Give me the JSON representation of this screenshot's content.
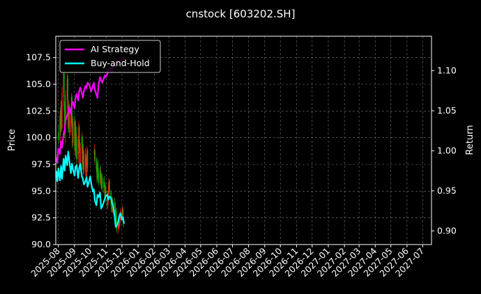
{
  "chart_data": {
    "type": "line",
    "title": "cnstock [603202.SH]",
    "ylabel": "Price",
    "y2label": "Return",
    "ylim": [
      90.0,
      109.5
    ],
    "y2lim": [
      0.883,
      1.143
    ],
    "xlim": [
      "2025-07-27",
      "2027-07-18"
    ],
    "yticks": [
      "90.0",
      "92.5",
      "95.0",
      "97.5",
      "100.0",
      "102.5",
      "105.0",
      "107.5"
    ],
    "y2ticks": [
      "0.90",
      "0.95",
      "1.00",
      "1.05",
      "1.10"
    ],
    "xticks": [
      "2025-08",
      "2025-09",
      "2025-10",
      "2025-11",
      "2025-12",
      "2026-01",
      "2026-02",
      "2026-03",
      "2026-04",
      "2026-05",
      "2026-06",
      "2026-07",
      "2026-08",
      "2026-09",
      "2026-10",
      "2026-11",
      "2026-12",
      "2027-01",
      "2027-02",
      "2027-03",
      "2027-04",
      "2027-05",
      "2027-06",
      "2027-07"
    ],
    "grid": true,
    "legend_position": "top-left",
    "candles": [
      {
        "date": "2025-08-01",
        "open": 100.5,
        "high": 101.2,
        "low": 99.4,
        "close": 99.8
      },
      {
        "date": "2025-08-04",
        "open": 99.8,
        "high": 102.5,
        "low": 99.5,
        "close": 102.0
      },
      {
        "date": "2025-08-05",
        "open": 102.0,
        "high": 102.8,
        "low": 100.2,
        "close": 100.8
      },
      {
        "date": "2025-08-06",
        "open": 100.8,
        "high": 103.5,
        "low": 100.5,
        "close": 103.0
      },
      {
        "date": "2025-08-07",
        "open": 103.0,
        "high": 103.4,
        "low": 100.6,
        "close": 101.0
      },
      {
        "date": "2025-08-08",
        "open": 101.0,
        "high": 104.8,
        "low": 100.8,
        "close": 104.2
      },
      {
        "date": "2025-08-11",
        "open": 104.2,
        "high": 106.5,
        "low": 103.8,
        "close": 106.0
      },
      {
        "date": "2025-08-12",
        "open": 106.0,
        "high": 106.4,
        "low": 102.5,
        "close": 103.0
      },
      {
        "date": "2025-08-13",
        "open": 103.0,
        "high": 103.4,
        "low": 100.0,
        "close": 100.4
      },
      {
        "date": "2025-08-14",
        "open": 100.4,
        "high": 102.0,
        "low": 99.5,
        "close": 101.5
      },
      {
        "date": "2025-08-15",
        "open": 101.5,
        "high": 104.5,
        "low": 101.2,
        "close": 104.0
      },
      {
        "date": "2025-08-18",
        "open": 104.0,
        "high": 106.0,
        "low": 103.5,
        "close": 105.5
      },
      {
        "date": "2025-08-19",
        "open": 105.5,
        "high": 105.8,
        "low": 102.0,
        "close": 102.5
      },
      {
        "date": "2025-08-20",
        "open": 102.5,
        "high": 103.0,
        "low": 100.5,
        "close": 101.0
      },
      {
        "date": "2025-08-21",
        "open": 101.0,
        "high": 103.5,
        "low": 100.8,
        "close": 103.0
      },
      {
        "date": "2025-08-22",
        "open": 103.0,
        "high": 103.2,
        "low": 100.0,
        "close": 100.5
      },
      {
        "date": "2025-08-25",
        "open": 100.5,
        "high": 102.8,
        "low": 100.2,
        "close": 102.3
      },
      {
        "date": "2025-08-26",
        "open": 102.3,
        "high": 104.2,
        "low": 101.8,
        "close": 103.8
      },
      {
        "date": "2025-08-27",
        "open": 103.8,
        "high": 104.0,
        "low": 101.0,
        "close": 101.4
      },
      {
        "date": "2025-08-28",
        "open": 101.4,
        "high": 101.8,
        "low": 99.0,
        "close": 99.5
      },
      {
        "date": "2025-08-29",
        "open": 99.5,
        "high": 102.0,
        "low": 99.2,
        "close": 101.5
      },
      {
        "date": "2025-09-01",
        "open": 101.5,
        "high": 102.0,
        "low": 98.8,
        "close": 99.2
      },
      {
        "date": "2025-09-02",
        "open": 99.2,
        "high": 101.8,
        "low": 98.5,
        "close": 101.2
      },
      {
        "date": "2025-09-03",
        "open": 101.2,
        "high": 101.6,
        "low": 98.2,
        "close": 98.8
      },
      {
        "date": "2025-09-04",
        "open": 98.8,
        "high": 100.5,
        "low": 98.0,
        "close": 100.0
      },
      {
        "date": "2025-09-05",
        "open": 100.0,
        "high": 101.0,
        "low": 97.5,
        "close": 98.0
      },
      {
        "date": "2025-09-08",
        "open": 98.0,
        "high": 100.2,
        "low": 97.6,
        "close": 99.8
      },
      {
        "date": "2025-09-09",
        "open": 99.8,
        "high": 101.5,
        "low": 99.2,
        "close": 101.0
      },
      {
        "date": "2025-09-10",
        "open": 101.0,
        "high": 101.2,
        "low": 98.5,
        "close": 99.0
      },
      {
        "date": "2025-09-11",
        "open": 99.0,
        "high": 99.8,
        "low": 97.2,
        "close": 97.6
      },
      {
        "date": "2025-09-12",
        "open": 97.6,
        "high": 99.5,
        "low": 97.2,
        "close": 99.0
      },
      {
        "date": "2025-09-15",
        "open": 99.0,
        "high": 100.5,
        "low": 98.5,
        "close": 100.0
      },
      {
        "date": "2025-09-16",
        "open": 100.0,
        "high": 100.2,
        "low": 97.0,
        "close": 97.5
      },
      {
        "date": "2025-09-17",
        "open": 97.5,
        "high": 99.2,
        "low": 97.0,
        "close": 98.8
      },
      {
        "date": "2025-09-18",
        "open": 98.8,
        "high": 99.4,
        "low": 96.5,
        "close": 97.0
      },
      {
        "date": "2025-09-19",
        "open": 97.0,
        "high": 98.8,
        "low": 96.6,
        "close": 98.4
      },
      {
        "date": "2025-09-22",
        "open": 98.4,
        "high": 99.0,
        "low": 96.8,
        "close": 97.2
      },
      {
        "date": "2025-09-23",
        "open": 97.2,
        "high": 98.5,
        "low": 96.0,
        "close": 96.4
      },
      {
        "date": "2025-09-24",
        "open": 96.4,
        "high": 98.2,
        "low": 96.2,
        "close": 97.8
      },
      {
        "date": "2025-09-25",
        "open": 97.8,
        "high": 99.2,
        "low": 97.4,
        "close": 98.8
      },
      {
        "date": "2025-09-26",
        "open": 98.8,
        "high": 99.0,
        "low": 96.8,
        "close": 97.2
      },
      {
        "date": "2025-10-09",
        "open": 98.4,
        "high": 99.4,
        "low": 97.8,
        "close": 98.8
      },
      {
        "date": "2025-10-10",
        "open": 98.8,
        "high": 99.0,
        "low": 97.6,
        "close": 98.0
      },
      {
        "date": "2025-10-13",
        "open": 98.0,
        "high": 98.2,
        "low": 96.8,
        "close": 97.1
      },
      {
        "date": "2025-10-14",
        "open": 97.1,
        "high": 97.6,
        "low": 95.8,
        "close": 96.2
      },
      {
        "date": "2025-10-15",
        "open": 96.2,
        "high": 97.8,
        "low": 96.0,
        "close": 97.4
      },
      {
        "date": "2025-10-16",
        "open": 97.4,
        "high": 98.0,
        "low": 96.3,
        "close": 96.6
      },
      {
        "date": "2025-10-17",
        "open": 96.6,
        "high": 97.0,
        "low": 95.5,
        "close": 95.8
      },
      {
        "date": "2025-10-20",
        "open": 95.8,
        "high": 97.2,
        "low": 95.6,
        "close": 96.9
      },
      {
        "date": "2025-10-21",
        "open": 96.9,
        "high": 97.4,
        "low": 96.1,
        "close": 96.3
      },
      {
        "date": "2025-10-22",
        "open": 96.3,
        "high": 96.8,
        "low": 95.2,
        "close": 95.5
      },
      {
        "date": "2025-10-23",
        "open": 95.5,
        "high": 96.6,
        "low": 95.2,
        "close": 96.3
      },
      {
        "date": "2025-10-24",
        "open": 96.3,
        "high": 96.6,
        "low": 95.0,
        "close": 95.3
      },
      {
        "date": "2025-10-27",
        "open": 95.3,
        "high": 96.2,
        "low": 94.8,
        "close": 95.9
      },
      {
        "date": "2025-10-28",
        "open": 95.9,
        "high": 96.4,
        "low": 95.3,
        "close": 95.6
      },
      {
        "date": "2025-10-29",
        "open": 95.6,
        "high": 95.8,
        "low": 94.2,
        "close": 94.5
      },
      {
        "date": "2025-10-30",
        "open": 94.5,
        "high": 95.4,
        "low": 94.1,
        "close": 95.1
      },
      {
        "date": "2025-10-31",
        "open": 95.1,
        "high": 95.6,
        "low": 94.4,
        "close": 94.8
      },
      {
        "date": "2025-11-03",
        "open": 94.8,
        "high": 95.0,
        "low": 93.4,
        "close": 93.7
      },
      {
        "date": "2025-11-04",
        "open": 93.7,
        "high": 94.6,
        "low": 93.3,
        "close": 94.3
      },
      {
        "date": "2025-11-05",
        "open": 94.3,
        "high": 95.6,
        "low": 94.0,
        "close": 95.2
      },
      {
        "date": "2025-11-06",
        "open": 95.2,
        "high": 96.2,
        "low": 94.9,
        "close": 95.9
      },
      {
        "date": "2025-11-07",
        "open": 95.9,
        "high": 96.1,
        "low": 94.6,
        "close": 94.9
      },
      {
        "date": "2025-11-10",
        "open": 94.9,
        "high": 95.1,
        "low": 93.6,
        "close": 93.9
      },
      {
        "date": "2025-11-11",
        "open": 93.9,
        "high": 94.3,
        "low": 93.0,
        "close": 93.3
      },
      {
        "date": "2025-11-12",
        "open": 93.3,
        "high": 94.5,
        "low": 93.0,
        "close": 94.2
      },
      {
        "date": "2025-11-13",
        "open": 94.2,
        "high": 94.4,
        "low": 93.1,
        "close": 93.5
      },
      {
        "date": "2025-11-14",
        "open": 93.5,
        "high": 94.2,
        "low": 92.9,
        "close": 93.9
      },
      {
        "date": "2025-11-17",
        "open": 93.9,
        "high": 94.4,
        "low": 93.4,
        "close": 93.8
      },
      {
        "date": "2025-11-18",
        "open": 93.8,
        "high": 94.0,
        "low": 92.6,
        "close": 92.9
      },
      {
        "date": "2025-11-19",
        "open": 92.9,
        "high": 93.5,
        "low": 92.3,
        "close": 93.2
      },
      {
        "date": "2025-11-20",
        "open": 93.2,
        "high": 93.4,
        "low": 92.0,
        "close": 92.3
      },
      {
        "date": "2025-11-21",
        "open": 92.3,
        "high": 92.6,
        "low": 91.1,
        "close": 91.4
      },
      {
        "date": "2025-11-24",
        "open": 91.4,
        "high": 92.1,
        "low": 91.0,
        "close": 91.8
      },
      {
        "date": "2025-11-25",
        "open": 91.8,
        "high": 92.7,
        "low": 91.5,
        "close": 92.5
      },
      {
        "date": "2025-11-26",
        "open": 92.5,
        "high": 92.7,
        "low": 91.6,
        "close": 91.9
      },
      {
        "date": "2025-11-27",
        "open": 91.9,
        "high": 92.6,
        "low": 91.7,
        "close": 92.3
      },
      {
        "date": "2025-11-28",
        "open": 92.3,
        "high": 93.4,
        "low": 92.1,
        "close": 93.1
      },
      {
        "date": "2025-12-01",
        "open": 93.1,
        "high": 93.2,
        "low": 92.2,
        "close": 92.5
      },
      {
        "date": "2025-12-02",
        "open": 92.5,
        "high": 93.6,
        "low": 92.3,
        "close": 93.3
      },
      {
        "date": "2025-12-03",
        "open": 93.3,
        "high": 93.5,
        "low": 92.1,
        "close": 92.4
      },
      {
        "date": "2025-12-04",
        "open": 92.4,
        "high": 92.6,
        "low": 91.6,
        "close": 91.9
      }
    ],
    "series": [
      {
        "name": "AI Strategy",
        "axis": "right",
        "color": "#ff00ff",
        "x": [
          "2025-07-28",
          "2025-07-30",
          "2025-08-01",
          "2025-08-04",
          "2025-08-06",
          "2025-08-08",
          "2025-08-11",
          "2025-08-13",
          "2025-08-15",
          "2025-08-18",
          "2025-08-20",
          "2025-08-22",
          "2025-08-25",
          "2025-08-27",
          "2025-08-29",
          "2025-09-01",
          "2025-09-03",
          "2025-09-05",
          "2025-09-08",
          "2025-09-10",
          "2025-09-12",
          "2025-09-15",
          "2025-09-17",
          "2025-09-19",
          "2025-09-22",
          "2025-09-24",
          "2025-09-26",
          "2025-09-29",
          "2025-10-01",
          "2025-10-03",
          "2025-10-06",
          "2025-10-08",
          "2025-10-10",
          "2025-10-13",
          "2025-10-15",
          "2025-10-17",
          "2025-10-20",
          "2025-10-22",
          "2025-10-24",
          "2025-10-27",
          "2025-10-29",
          "2025-10-31",
          "2025-11-03",
          "2025-11-05",
          "2025-11-07",
          "2025-11-10",
          "2025-11-12",
          "2025-11-14",
          "2025-11-17",
          "2025-11-19",
          "2025-11-21",
          "2025-11-24",
          "2025-11-26",
          "2025-11-28",
          "2025-12-01",
          "2025-12-03",
          "2025-12-05"
        ],
        "values": [
          0.992,
          0.985,
          1.003,
          0.996,
          1.012,
          1.004,
          1.021,
          1.026,
          1.038,
          1.044,
          1.05,
          1.054,
          1.046,
          1.058,
          1.061,
          1.053,
          1.066,
          1.071,
          1.063,
          1.074,
          1.079,
          1.072,
          1.066,
          1.075,
          1.081,
          1.078,
          1.085,
          1.083,
          1.079,
          1.074,
          1.081,
          1.085,
          1.076,
          1.07,
          1.066,
          1.082,
          1.092,
          1.088,
          1.085,
          1.09,
          1.094,
          1.092,
          1.096,
          1.102,
          1.1,
          1.104,
          1.098,
          1.104,
          1.109,
          1.106,
          1.112,
          1.113,
          1.108,
          1.112,
          1.115,
          1.113,
          1.117
        ]
      },
      {
        "name": "Buy-and-Hold",
        "axis": "right",
        "color": "#00ffff",
        "x": [
          "2025-07-28",
          "2025-07-30",
          "2025-08-01",
          "2025-08-04",
          "2025-08-06",
          "2025-08-08",
          "2025-08-11",
          "2025-08-13",
          "2025-08-15",
          "2025-08-18",
          "2025-08-20",
          "2025-08-22",
          "2025-08-25",
          "2025-08-27",
          "2025-08-29",
          "2025-09-01",
          "2025-09-03",
          "2025-09-05",
          "2025-09-08",
          "2025-09-10",
          "2025-09-12",
          "2025-09-15",
          "2025-09-17",
          "2025-09-19",
          "2025-09-22",
          "2025-09-24",
          "2025-09-26",
          "2025-09-29",
          "2025-10-01",
          "2025-10-03",
          "2025-10-06",
          "2025-10-08",
          "2025-10-10",
          "2025-10-13",
          "2025-10-15",
          "2025-10-17",
          "2025-10-20",
          "2025-10-22",
          "2025-10-24",
          "2025-10-27",
          "2025-10-29",
          "2025-10-31",
          "2025-11-03",
          "2025-11-05",
          "2025-11-07",
          "2025-11-10",
          "2025-11-12",
          "2025-11-14",
          "2025-11-17",
          "2025-11-19",
          "2025-11-21",
          "2025-11-24",
          "2025-11-26",
          "2025-11-28",
          "2025-12-01",
          "2025-12-03",
          "2025-12-05"
        ],
        "values": [
          0.975,
          0.962,
          0.978,
          0.963,
          0.981,
          0.965,
          0.99,
          0.975,
          0.994,
          0.982,
          0.999,
          0.988,
          0.972,
          0.984,
          0.977,
          0.969,
          0.98,
          0.982,
          0.966,
          0.978,
          0.984,
          0.968,
          0.965,
          0.958,
          0.962,
          0.967,
          0.955,
          0.962,
          0.968,
          0.96,
          0.949,
          0.952,
          0.938,
          0.932,
          0.945,
          0.942,
          0.948,
          0.928,
          0.93,
          0.936,
          0.94,
          0.944,
          0.945,
          0.939,
          0.943,
          0.941,
          0.935,
          0.932,
          0.918,
          0.905,
          0.906,
          0.912,
          0.919,
          0.922,
          0.914,
          0.917,
          0.909
        ]
      }
    ]
  }
}
